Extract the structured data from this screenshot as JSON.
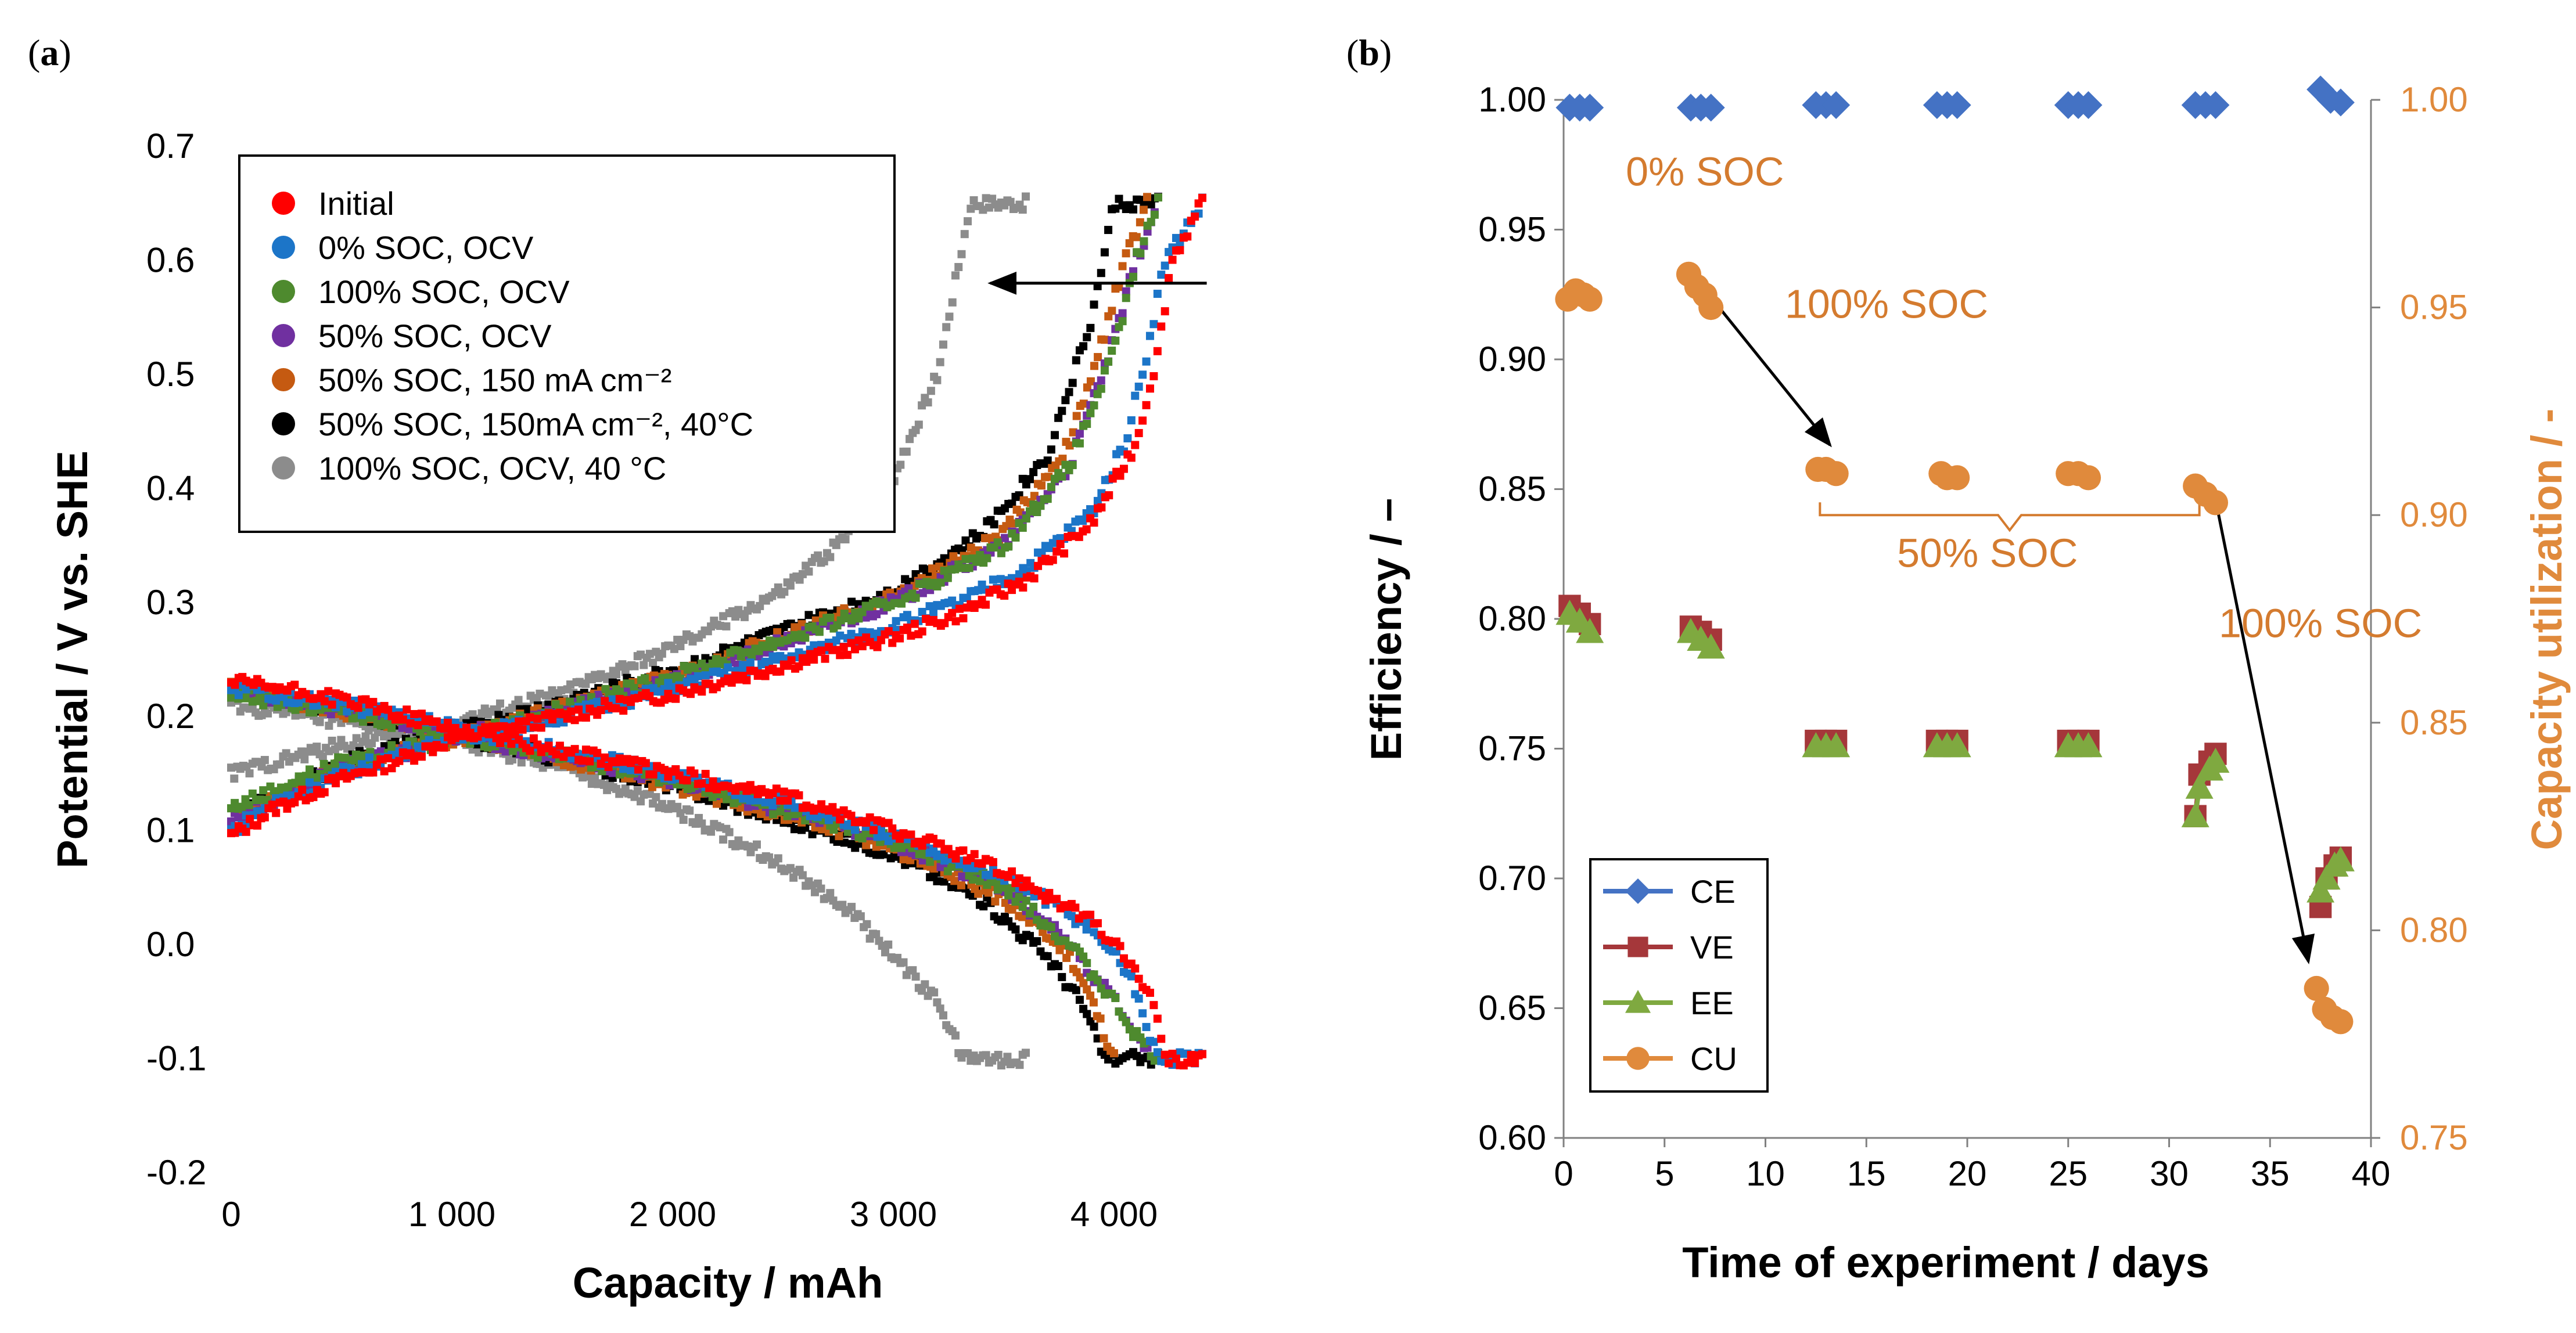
{
  "panels": {
    "a": {
      "label_open": "(",
      "letter": "a",
      "label_close": ")"
    },
    "b": {
      "label_open": "(",
      "letter": "b",
      "label_close": ")"
    }
  },
  "chart_data": [
    {
      "type": "scatter",
      "panel": "a",
      "title": "",
      "xlabel": "Capacity / mAh",
      "ylabel": "Potential / V vs. SHE",
      "xlim": [
        0,
        4500
      ],
      "ylim": [
        -0.2,
        0.7
      ],
      "x_ticks": [
        0,
        1000,
        2000,
        3000,
        4000
      ],
      "x_tick_labels": [
        "0",
        "1 000",
        "2 000",
        "3 000",
        "4 000"
      ],
      "y_ticks": [
        -0.2,
        -0.1,
        0.0,
        0.1,
        0.2,
        0.3,
        0.4,
        0.5,
        0.6,
        0.7
      ],
      "y_tick_labels": [
        "-0.2",
        "-0.1",
        "0.0",
        "0.1",
        "0.2",
        "0.3",
        "0.4",
        "0.5",
        "0.6",
        "0.7"
      ],
      "legend_position": "top-left",
      "series": [
        {
          "name": "Initial",
          "color": "#FF0000",
          "charge": {
            "x": [
              0,
              200,
              500,
              800,
              1000,
              1500,
              2000,
              2500,
              3000,
              3300,
              3600,
              3900,
              4100,
              4200,
              4260,
              4400
            ],
            "y": [
              0.095,
              0.12,
              0.145,
              0.165,
              0.18,
              0.2,
              0.22,
              0.245,
              0.27,
              0.29,
              0.32,
              0.37,
              0.44,
              0.52,
              0.6,
              0.65
            ]
          },
          "discharge": {
            "x": [
              0,
              200,
              500,
              800,
              1000,
              1500,
              2000,
              2500,
              3000,
              3300,
              3600,
              3900,
              4050,
              4150,
              4200,
              4240,
              4400
            ],
            "y": [
              0.23,
              0.225,
              0.215,
              0.2,
              0.19,
              0.17,
              0.15,
              0.13,
              0.1,
              0.08,
              0.055,
              0.02,
              -0.01,
              -0.04,
              -0.07,
              -0.1,
              -0.1
            ]
          }
        },
        {
          "name": "0% SOC, OCV",
          "color": "#1C75C8",
          "charge": {
            "x": [
              0,
              200,
              500,
              800,
              1000,
              1500,
              2000,
              2500,
              3000,
              3300,
              3600,
              3900,
              4050,
              4150,
              4230,
              4400
            ],
            "y": [
              0.1,
              0.125,
              0.15,
              0.17,
              0.18,
              0.2,
              0.225,
              0.25,
              0.28,
              0.3,
              0.33,
              0.38,
              0.44,
              0.52,
              0.6,
              0.65
            ]
          },
          "discharge": {
            "x": [
              0,
              200,
              500,
              800,
              1000,
              1500,
              2000,
              2500,
              3000,
              3300,
              3600,
              3900,
              4050,
              4120,
              4160,
              4200,
              4400
            ],
            "y": [
              0.225,
              0.22,
              0.21,
              0.2,
              0.19,
              0.17,
              0.15,
              0.125,
              0.095,
              0.075,
              0.05,
              0.015,
              -0.02,
              -0.05,
              -0.08,
              -0.1,
              -0.1
            ]
          }
        },
        {
          "name": "100% SOC, OCV",
          "color": "#4E8A2E",
          "charge": {
            "x": [
              0,
              500,
              1000,
              2000,
              3000,
              3500,
              3800,
              4000,
              4100,
              4200
            ],
            "y": [
              0.12,
              0.16,
              0.18,
              0.235,
              0.3,
              0.35,
              0.42,
              0.52,
              0.6,
              0.65
            ]
          },
          "discharge": {
            "x": [
              0,
              500,
              1000,
              2000,
              3000,
              3500,
              3800,
              4000,
              4100,
              4200
            ],
            "y": [
              0.22,
              0.205,
              0.185,
              0.145,
              0.09,
              0.05,
              0.0,
              -0.05,
              -0.08,
              -0.1
            ]
          }
        },
        {
          "name": "50% SOC, OCV",
          "color": "#7030A0",
          "charge": {
            "x": [
              0,
              500,
              1000,
              2000,
              3000,
              3500,
              3800,
              4000,
              4100,
              4200
            ],
            "y": [
              0.11,
              0.155,
              0.18,
              0.23,
              0.3,
              0.35,
              0.42,
              0.53,
              0.6,
              0.65
            ]
          },
          "discharge": {
            "x": [
              0,
              500,
              1000,
              2000,
              3000,
              3500,
              3800,
              4000,
              4100,
              4200
            ],
            "y": [
              0.225,
              0.205,
              0.185,
              0.145,
              0.09,
              0.05,
              0.0,
              -0.05,
              -0.08,
              -0.1
            ]
          }
        },
        {
          "name": "50% SOC, 150 mA cm⁻²",
          "color": "#C55A11",
          "charge": {
            "x": [
              0,
              500,
              1000,
              2000,
              3000,
              3500,
              3800,
              3950,
              4050,
              4150
            ],
            "y": [
              0.11,
              0.155,
              0.18,
              0.235,
              0.305,
              0.36,
              0.44,
              0.53,
              0.6,
              0.65
            ]
          },
          "discharge": {
            "x": [
              0,
              500,
              1000,
              2000,
              3000,
              3500,
              3800,
              3900,
              3960,
              4000
            ],
            "y": [
              0.225,
              0.205,
              0.185,
              0.14,
              0.085,
              0.04,
              -0.01,
              -0.05,
              -0.08,
              -0.1
            ]
          }
        },
        {
          "name": "50% SOC, 150mA cm⁻², 40°C",
          "color": "#000000",
          "charge": {
            "x": [
              0,
              500,
              1000,
              2000,
              3000,
              3400,
              3700,
              3900,
              4000,
              4200
            ],
            "y": [
              0.11,
              0.16,
              0.185,
              0.24,
              0.31,
              0.36,
              0.43,
              0.55,
              0.65,
              0.65
            ]
          },
          "discharge": {
            "x": [
              0,
              500,
              1000,
              2000,
              3000,
              3400,
              3700,
              3850,
              3960,
              4200
            ],
            "y": [
              0.225,
              0.205,
              0.185,
              0.14,
              0.08,
              0.04,
              -0.01,
              -0.05,
              -0.1,
              -0.1
            ]
          }
        },
        {
          "name": "100% SOC, OCV, 40 °C",
          "color": "#8C8C8C",
          "charge": {
            "x": [
              0,
              500,
              1000,
              1500,
              2000,
              2500,
              2800,
              3000,
              3200,
              3350,
              3600
            ],
            "y": [
              0.15,
              0.175,
              0.195,
              0.22,
              0.26,
              0.31,
              0.36,
              0.41,
              0.5,
              0.65,
              0.65
            ]
          },
          "discharge": {
            "x": [
              0,
              500,
              1000,
              1500,
              2000,
              2500,
              2800,
              3000,
              3200,
              3320,
              3400,
              3600
            ],
            "y": [
              0.21,
              0.195,
              0.18,
              0.155,
              0.12,
              0.07,
              0.03,
              -0.01,
              -0.05,
              -0.1,
              -0.1,
              -0.1
            ]
          }
        }
      ],
      "annotations": [
        {
          "type": "arrow",
          "from": [
            4420,
            0.58
          ],
          "to": [
            3440,
            0.58
          ]
        }
      ]
    },
    {
      "type": "scatter",
      "panel": "b",
      "title": "",
      "xlabel": "Time of experiment / days",
      "ylabel": "Efficiency / –",
      "y2label": "Capacity utilization / -",
      "xlim": [
        0,
        40
      ],
      "ylim": [
        0.6,
        1.0
      ],
      "y2lim": [
        0.75,
        1.0
      ],
      "x_ticks": [
        0,
        5,
        10,
        15,
        20,
        25,
        30,
        35,
        40
      ],
      "x_tick_labels": [
        "0",
        "5",
        "10",
        "15",
        "20",
        "25",
        "30",
        "35",
        "40"
      ],
      "y_ticks": [
        0.6,
        0.65,
        0.7,
        0.75,
        0.8,
        0.85,
        0.9,
        0.95,
        1.0
      ],
      "y_tick_labels": [
        "0.60",
        "0.65",
        "0.70",
        "0.75",
        "0.80",
        "0.85",
        "0.90",
        "0.95",
        "1.00"
      ],
      "y2_ticks": [
        0.75,
        0.8,
        0.85,
        0.9,
        0.95,
        1.0
      ],
      "y2_tick_labels": [
        "0.75",
        "0.80",
        "0.85",
        "0.90",
        "0.95",
        "1.00"
      ],
      "legend_position": "bottom-left",
      "series": [
        {
          "name": "CE",
          "color": "#4472C4",
          "marker": "diamond",
          "axis": "left",
          "x": [
            0.3,
            0.8,
            1.3,
            6.3,
            6.8,
            7.3,
            12.5,
            13.0,
            13.5,
            18.5,
            19.0,
            19.5,
            25.0,
            25.5,
            26.0,
            31.3,
            31.8,
            32.3,
            37.5,
            38.0,
            38.5
          ],
          "y": [
            0.997,
            0.997,
            0.997,
            0.997,
            0.997,
            0.997,
            0.998,
            0.998,
            0.998,
            0.998,
            0.998,
            0.998,
            0.998,
            0.998,
            0.998,
            0.998,
            0.998,
            0.998,
            1.004,
            1.0,
            0.999
          ]
        },
        {
          "name": "VE",
          "color": "#A5373A",
          "marker": "square",
          "axis": "left",
          "x": [
            0.3,
            0.8,
            1.3,
            6.3,
            6.8,
            7.3,
            12.5,
            13.0,
            13.5,
            18.5,
            19.0,
            19.5,
            25.0,
            25.5,
            26.0,
            31.3,
            31.5,
            32.0,
            32.3,
            37.5,
            37.8,
            38.2,
            38.5
          ],
          "y": [
            0.805,
            0.802,
            0.798,
            0.797,
            0.795,
            0.792,
            0.753,
            0.753,
            0.753,
            0.753,
            0.753,
            0.753,
            0.753,
            0.753,
            0.753,
            0.724,
            0.74,
            0.745,
            0.748,
            0.689,
            0.7,
            0.705,
            0.708
          ]
        },
        {
          "name": "EE",
          "color": "#7FA940",
          "marker": "triangle",
          "axis": "left",
          "x": [
            0.3,
            0.8,
            1.3,
            6.3,
            6.8,
            7.3,
            12.5,
            13.0,
            13.5,
            18.5,
            19.0,
            19.5,
            25.0,
            25.5,
            26.0,
            31.3,
            31.5,
            32.0,
            32.3,
            37.5,
            37.8,
            38.2,
            38.5
          ],
          "y": [
            0.802,
            0.799,
            0.795,
            0.795,
            0.792,
            0.789,
            0.751,
            0.751,
            0.751,
            0.751,
            0.751,
            0.751,
            0.751,
            0.751,
            0.751,
            0.724,
            0.735,
            0.742,
            0.745,
            0.695,
            0.7,
            0.705,
            0.707
          ]
        },
        {
          "name": "CU",
          "color": "#E08A3C",
          "marker": "circle",
          "axis": "right",
          "x": [
            0.2,
            0.6,
            1.0,
            1.3,
            6.2,
            6.6,
            7.0,
            7.3,
            12.6,
            13.0,
            13.5,
            18.7,
            19.0,
            19.5,
            25.0,
            25.5,
            26.0,
            31.3,
            31.8,
            32.3,
            37.3,
            37.7,
            38.1,
            38.5
          ],
          "y": [
            0.952,
            0.954,
            0.953,
            0.952,
            0.958,
            0.955,
            0.953,
            0.95,
            0.911,
            0.911,
            0.91,
            0.91,
            0.909,
            0.909,
            0.91,
            0.91,
            0.909,
            0.907,
            0.905,
            0.903,
            0.786,
            0.781,
            0.779,
            0.778
          ]
        }
      ],
      "annotations": [
        {
          "type": "text",
          "text": "0% SOC",
          "at": [
            7,
            0.967
          ]
        },
        {
          "type": "text",
          "text": "100% SOC",
          "at": [
            16,
            0.916
          ]
        },
        {
          "type": "text",
          "text": "50% SOC",
          "at": [
            21,
            0.82
          ]
        },
        {
          "type": "text",
          "text": "100% SOC",
          "at": [
            37.5,
            0.793
          ]
        },
        {
          "type": "arrow",
          "from": [
            7.5,
            0.922
          ],
          "to": [
            13.2,
            0.867
          ]
        },
        {
          "type": "arrow",
          "from": [
            32.3,
            0.846
          ],
          "to": [
            36.9,
            0.668
          ]
        },
        {
          "type": "brace",
          "x_from": 12.7,
          "x_to": 31.5,
          "y": 0.84
        }
      ]
    }
  ]
}
